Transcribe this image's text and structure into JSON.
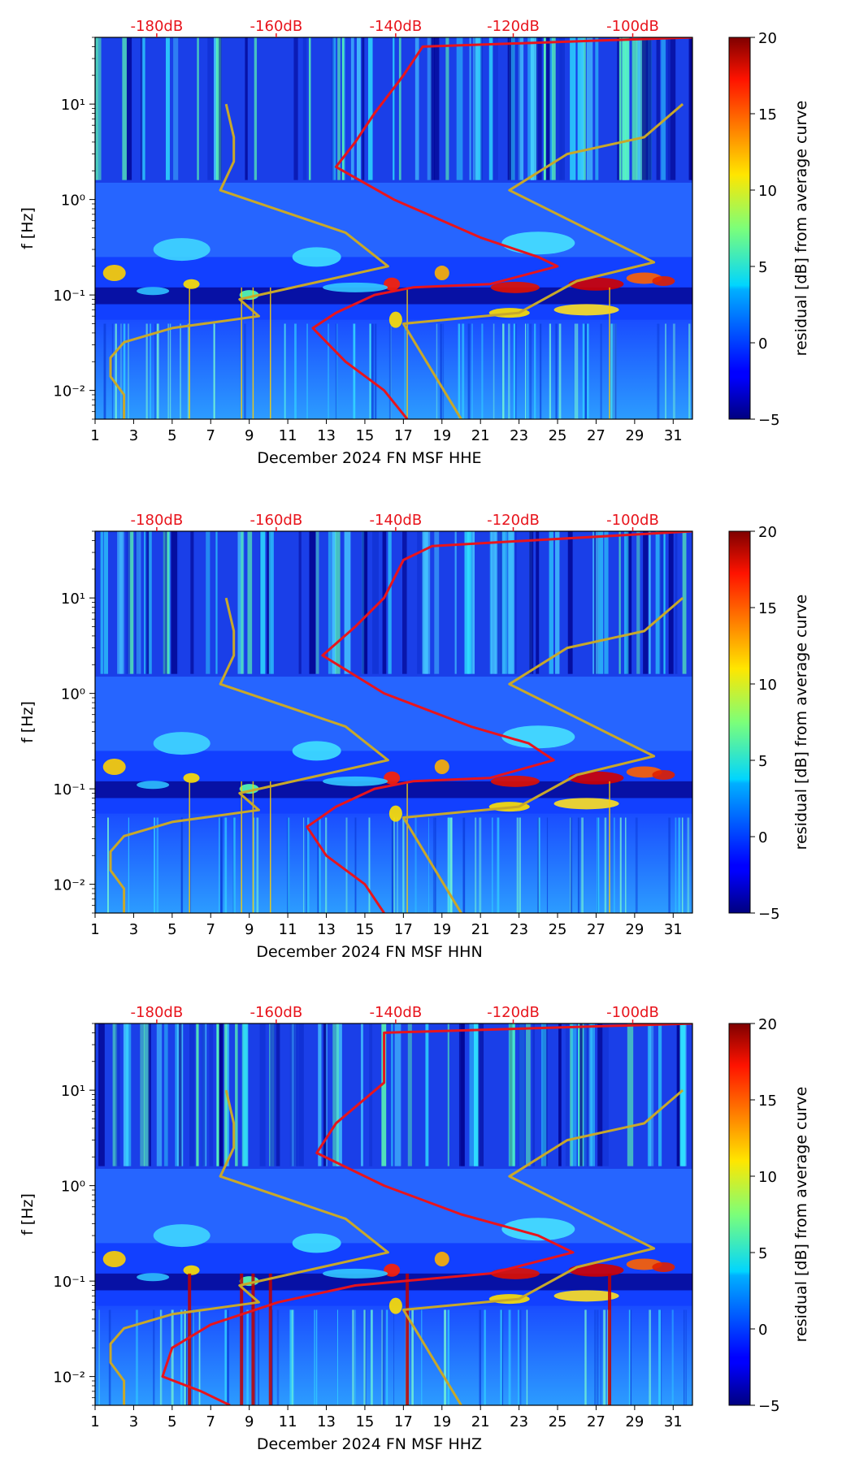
{
  "figure": {
    "colorbar_label": "residual [dB] from average curve",
    "colorbar_ticks": [
      "20",
      "15",
      "10",
      "5",
      "0",
      "−5"
    ],
    "colors": {
      "psd_curve": "#e8141c",
      "noise_model": "#c8a82a",
      "db_text": "#e8141c"
    }
  },
  "chart_data": [
    {
      "type": "heatmap",
      "subtype": "spectrogram",
      "channel": "HHE",
      "xlabel": "December 2024 FN MSF  HHE",
      "ylabel": "f [Hz]",
      "x_ticks": [
        "1",
        "3",
        "5",
        "7",
        "9",
        "11",
        "13",
        "15",
        "17",
        "19",
        "21",
        "23",
        "25",
        "27",
        "29",
        "31"
      ],
      "y_ticks": [
        "10¹",
        "10⁰",
        "10⁻¹",
        "10⁻²"
      ],
      "top_ticks": [
        "-180dB",
        "-160dB",
        "-140dB",
        "-120dB",
        "-100dB"
      ],
      "x_range_days": [
        1,
        32
      ],
      "y_range_hz": [
        0.005,
        50
      ],
      "colorbar_range_db": [
        -5,
        20
      ],
      "psd_curve_red": [
        {
          "day": 17.2,
          "f": 0.005
        },
        {
          "day": 16.0,
          "f": 0.01
        },
        {
          "day": 14.0,
          "f": 0.02
        },
        {
          "day": 12.3,
          "f": 0.045
        },
        {
          "day": 13.5,
          "f": 0.065
        },
        {
          "day": 15.5,
          "f": 0.1
        },
        {
          "day": 17.5,
          "f": 0.12
        },
        {
          "day": 21.5,
          "f": 0.13
        },
        {
          "day": 25.0,
          "f": 0.2
        },
        {
          "day": 24.0,
          "f": 0.25
        },
        {
          "day": 21.0,
          "f": 0.4
        },
        {
          "day": 16.5,
          "f": 1.0
        },
        {
          "day": 13.5,
          "f": 2.2
        },
        {
          "day": 14.5,
          "f": 4.0
        },
        {
          "day": 15.5,
          "f": 8.0
        },
        {
          "day": 17.0,
          "f": 20.0
        },
        {
          "day": 18.0,
          "f": 40.0
        },
        {
          "day": 32.0,
          "f": 50.0
        }
      ],
      "noise_model_curve": [
        {
          "day": 2.5,
          "f": 0.005
        },
        {
          "day": 2.5,
          "f": 0.009
        },
        {
          "day": 1.8,
          "f": 0.014
        },
        {
          "day": 1.8,
          "f": 0.022
        },
        {
          "day": 2.5,
          "f": 0.032
        },
        {
          "day": 5.0,
          "f": 0.045
        },
        {
          "day": 9.5,
          "f": 0.06
        },
        {
          "day": 8.5,
          "f": 0.09
        },
        {
          "day": 16.2,
          "f": 0.2
        },
        {
          "day": 14.0,
          "f": 0.45
        },
        {
          "day": 7.5,
          "f": 1.25
        },
        {
          "day": 8.2,
          "f": 2.5
        },
        {
          "day": 8.2,
          "f": 4.5
        },
        {
          "day": 7.8,
          "f": 10.0
        }
      ],
      "high_noise_model_curve": [
        {
          "day": 20.0,
          "f": 0.005
        },
        {
          "day": 17.0,
          "f": 0.05
        },
        {
          "day": 23.0,
          "f": 0.065
        },
        {
          "day": 26.0,
          "f": 0.14
        },
        {
          "day": 30.0,
          "f": 0.22
        },
        {
          "day": 22.5,
          "f": 1.25
        },
        {
          "day": 25.5,
          "f": 3.0
        },
        {
          "day": 29.5,
          "f": 4.5
        },
        {
          "day": 31.5,
          "f": 10.0
        }
      ]
    },
    {
      "type": "heatmap",
      "subtype": "spectrogram",
      "channel": "HHN",
      "xlabel": "December 2024 FN MSF  HHN",
      "ylabel": "f [Hz]",
      "x_ticks": [
        "1",
        "3",
        "5",
        "7",
        "9",
        "11",
        "13",
        "15",
        "17",
        "19",
        "21",
        "23",
        "25",
        "27",
        "29",
        "31"
      ],
      "y_ticks": [
        "10¹",
        "10⁰",
        "10⁻¹",
        "10⁻²"
      ],
      "top_ticks": [
        "-180dB",
        "-160dB",
        "-140dB",
        "-120dB",
        "-100dB"
      ],
      "x_range_days": [
        1,
        32
      ],
      "y_range_hz": [
        0.005,
        50
      ],
      "colorbar_range_db": [
        -5,
        20
      ],
      "psd_curve_red": [
        {
          "day": 16.0,
          "f": 0.005
        },
        {
          "day": 15.0,
          "f": 0.01
        },
        {
          "day": 13.0,
          "f": 0.02
        },
        {
          "day": 12.0,
          "f": 0.04
        },
        {
          "day": 13.5,
          "f": 0.065
        },
        {
          "day": 15.5,
          "f": 0.1
        },
        {
          "day": 17.5,
          "f": 0.12
        },
        {
          "day": 21.5,
          "f": 0.13
        },
        {
          "day": 24.8,
          "f": 0.2
        },
        {
          "day": 23.5,
          "f": 0.3
        },
        {
          "day": 20.5,
          "f": 0.45
        },
        {
          "day": 16.0,
          "f": 1.0
        },
        {
          "day": 12.8,
          "f": 2.5
        },
        {
          "day": 14.5,
          "f": 5.0
        },
        {
          "day": 16.0,
          "f": 10.0
        },
        {
          "day": 17.0,
          "f": 25.0
        },
        {
          "day": 18.5,
          "f": 35.0
        },
        {
          "day": 32.0,
          "f": 50.0
        }
      ],
      "noise_model_curve": [
        {
          "day": 2.5,
          "f": 0.005
        },
        {
          "day": 2.5,
          "f": 0.009
        },
        {
          "day": 1.8,
          "f": 0.014
        },
        {
          "day": 1.8,
          "f": 0.022
        },
        {
          "day": 2.5,
          "f": 0.032
        },
        {
          "day": 5.0,
          "f": 0.045
        },
        {
          "day": 9.5,
          "f": 0.06
        },
        {
          "day": 8.5,
          "f": 0.09
        },
        {
          "day": 16.2,
          "f": 0.2
        },
        {
          "day": 14.0,
          "f": 0.45
        },
        {
          "day": 7.5,
          "f": 1.25
        },
        {
          "day": 8.2,
          "f": 2.5
        },
        {
          "day": 8.2,
          "f": 4.5
        },
        {
          "day": 7.8,
          "f": 10.0
        }
      ],
      "high_noise_model_curve": [
        {
          "day": 20.0,
          "f": 0.005
        },
        {
          "day": 17.0,
          "f": 0.05
        },
        {
          "day": 23.0,
          "f": 0.065
        },
        {
          "day": 26.0,
          "f": 0.14
        },
        {
          "day": 30.0,
          "f": 0.22
        },
        {
          "day": 22.5,
          "f": 1.25
        },
        {
          "day": 25.5,
          "f": 3.0
        },
        {
          "day": 29.5,
          "f": 4.5
        },
        {
          "day": 31.5,
          "f": 10.0
        }
      ]
    },
    {
      "type": "heatmap",
      "subtype": "spectrogram",
      "channel": "HHZ",
      "xlabel": "December 2024 FN MSF  HHZ",
      "ylabel": "f [Hz]",
      "x_ticks": [
        "1",
        "3",
        "5",
        "7",
        "9",
        "11",
        "13",
        "15",
        "17",
        "19",
        "21",
        "23",
        "25",
        "27",
        "29",
        "31"
      ],
      "y_ticks": [
        "10¹",
        "10⁰",
        "10⁻¹",
        "10⁻²"
      ],
      "top_ticks": [
        "-180dB",
        "-160dB",
        "-140dB",
        "-120dB",
        "-100dB"
      ],
      "x_range_days": [
        1,
        32
      ],
      "y_range_hz": [
        0.005,
        50
      ],
      "colorbar_range_db": [
        -5,
        20
      ],
      "psd_curve_red": [
        {
          "day": 8.0,
          "f": 0.005
        },
        {
          "day": 6.5,
          "f": 0.007
        },
        {
          "day": 4.5,
          "f": 0.01
        },
        {
          "day": 5.0,
          "f": 0.02
        },
        {
          "day": 7.0,
          "f": 0.035
        },
        {
          "day": 10.5,
          "f": 0.06
        },
        {
          "day": 14.5,
          "f": 0.09
        },
        {
          "day": 17.0,
          "f": 0.1
        },
        {
          "day": 21.5,
          "f": 0.12
        },
        {
          "day": 25.8,
          "f": 0.2
        },
        {
          "day": 24.0,
          "f": 0.3
        },
        {
          "day": 20.0,
          "f": 0.5
        },
        {
          "day": 16.0,
          "f": 1.0
        },
        {
          "day": 12.5,
          "f": 2.2
        },
        {
          "day": 13.5,
          "f": 4.5
        },
        {
          "day": 16.0,
          "f": 12.0
        },
        {
          "day": 16.0,
          "f": 40.0
        },
        {
          "day": 32.0,
          "f": 50.0
        }
      ],
      "noise_model_curve": [
        {
          "day": 2.5,
          "f": 0.005
        },
        {
          "day": 2.5,
          "f": 0.009
        },
        {
          "day": 1.8,
          "f": 0.014
        },
        {
          "day": 1.8,
          "f": 0.022
        },
        {
          "day": 2.5,
          "f": 0.032
        },
        {
          "day": 5.0,
          "f": 0.045
        },
        {
          "day": 9.5,
          "f": 0.06
        },
        {
          "day": 8.5,
          "f": 0.09
        },
        {
          "day": 16.2,
          "f": 0.2
        },
        {
          "day": 14.0,
          "f": 0.45
        },
        {
          "day": 7.5,
          "f": 1.25
        },
        {
          "day": 8.2,
          "f": 2.5
        },
        {
          "day": 8.2,
          "f": 4.5
        },
        {
          "day": 7.8,
          "f": 10.0
        }
      ],
      "high_noise_model_curve": [
        {
          "day": 20.0,
          "f": 0.005
        },
        {
          "day": 17.0,
          "f": 0.05
        },
        {
          "day": 23.0,
          "f": 0.065
        },
        {
          "day": 26.0,
          "f": 0.14
        },
        {
          "day": 30.0,
          "f": 0.22
        },
        {
          "day": 22.5,
          "f": 1.25
        },
        {
          "day": 25.5,
          "f": 3.0
        },
        {
          "day": 29.5,
          "f": 4.5
        },
        {
          "day": 31.5,
          "f": 10.0
        }
      ]
    }
  ]
}
